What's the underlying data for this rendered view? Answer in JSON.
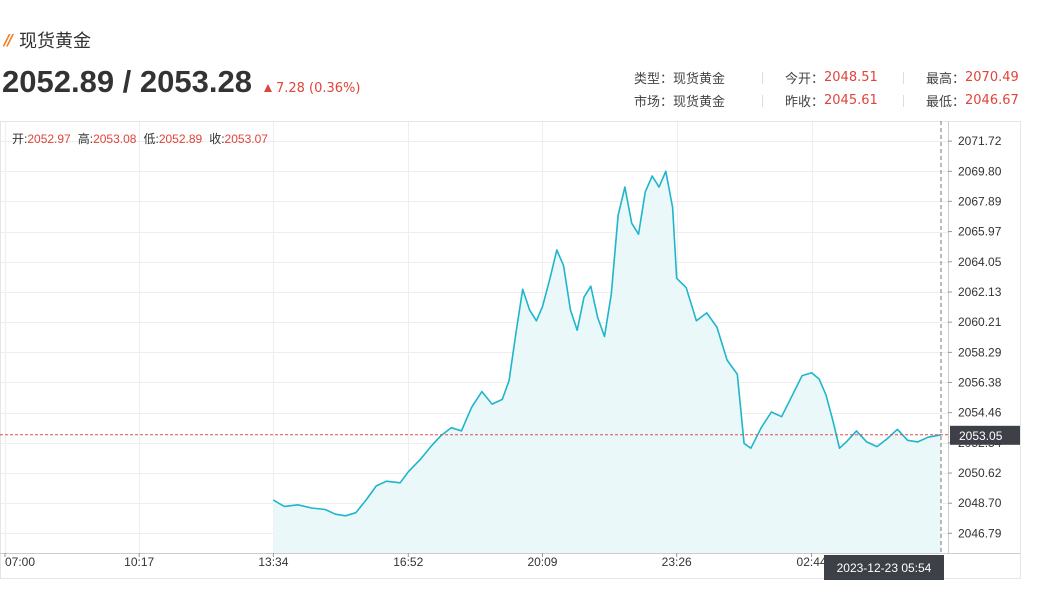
{
  "header": {
    "title": "现货黄金",
    "bid_ask": "2052.89 / 2053.28",
    "change": "7.28 (0.36%)"
  },
  "info": {
    "type_label": "类型：",
    "type_value": "现货黄金",
    "open_label": "今开：",
    "open_value": "2048.51",
    "high_label": "最高：",
    "high_value": "2070.49",
    "market_label": "市场：",
    "market_value": "现货黄金",
    "prev_close_label": "昨收：",
    "prev_close_value": "2045.61",
    "low_label": "最低：",
    "low_value": "2046.67"
  },
  "ohlc_bar": {
    "open_label": "开:",
    "open_value": "2052.97",
    "high_label": "高:",
    "high_value": "2053.08",
    "low_label": "低:",
    "low_value": "2052.89",
    "close_label": "收:",
    "close_value": "2053.07"
  },
  "colors": {
    "line": "#1fb5cc",
    "area": "#eaf8fa",
    "up": "#e0443b",
    "ref_line": "#d9534f",
    "crosshair_label_bg": "#3e4047"
  },
  "crosshair": {
    "price_label": "2053.05",
    "time_label": "2023-12-23 05:54"
  },
  "chart_data": {
    "type": "area",
    "title": "",
    "xlabel": "",
    "ylabel": "",
    "x_ticks": [
      "07:00",
      "10:17",
      "13:34",
      "16:52",
      "20:09",
      "23:26",
      "02:44"
    ],
    "y_ticks": [
      2071.72,
      2069.8,
      2067.89,
      2065.97,
      2064.05,
      2062.13,
      2060.21,
      2058.29,
      2056.38,
      2054.46,
      2052.54,
      2050.62,
      2048.7,
      2046.79
    ],
    "ylim": [
      2045.6,
      2072.3
    ],
    "reference_line": 2053.05,
    "series": [
      {
        "points": [
          [
            "13:34",
            2048.9
          ],
          [
            "13:50",
            2048.5
          ],
          [
            "14:10",
            2048.6
          ],
          [
            "14:30",
            2048.4
          ],
          [
            "14:50",
            2048.3
          ],
          [
            "15:05",
            2048.0
          ],
          [
            "15:20",
            2047.9
          ],
          [
            "15:35",
            2048.1
          ],
          [
            "15:50",
            2048.9
          ],
          [
            "16:05",
            2049.8
          ],
          [
            "16:20",
            2050.1
          ],
          [
            "16:40",
            2050.0
          ],
          [
            "16:52",
            2050.7
          ],
          [
            "17:10",
            2051.5
          ],
          [
            "17:25",
            2052.3
          ],
          [
            "17:40",
            2053.0
          ],
          [
            "17:55",
            2053.5
          ],
          [
            "18:10",
            2053.3
          ],
          [
            "18:25",
            2054.8
          ],
          [
            "18:40",
            2055.8
          ],
          [
            "18:55",
            2055.0
          ],
          [
            "19:10",
            2055.3
          ],
          [
            "19:20",
            2056.5
          ],
          [
            "19:30",
            2059.5
          ],
          [
            "19:40",
            2062.3
          ],
          [
            "19:50",
            2061.0
          ],
          [
            "20:00",
            2060.3
          ],
          [
            "20:09",
            2061.2
          ],
          [
            "20:20",
            2063.0
          ],
          [
            "20:30",
            2064.8
          ],
          [
            "20:40",
            2063.8
          ],
          [
            "20:50",
            2061.0
          ],
          [
            "21:00",
            2059.7
          ],
          [
            "21:10",
            2061.8
          ],
          [
            "21:20",
            2062.5
          ],
          [
            "21:30",
            2060.5
          ],
          [
            "21:40",
            2059.3
          ],
          [
            "21:50",
            2062.0
          ],
          [
            "22:00",
            2067.0
          ],
          [
            "22:10",
            2068.8
          ],
          [
            "22:20",
            2066.5
          ],
          [
            "22:30",
            2065.8
          ],
          [
            "22:40",
            2068.5
          ],
          [
            "22:50",
            2069.5
          ],
          [
            "23:00",
            2068.8
          ],
          [
            "23:10",
            2069.8
          ],
          [
            "23:20",
            2067.5
          ],
          [
            "23:26",
            2063.0
          ],
          [
            "23:40",
            2062.4
          ],
          [
            "23:55",
            2060.3
          ],
          [
            "00:10",
            2060.8
          ],
          [
            "00:25",
            2059.9
          ],
          [
            "00:40",
            2057.8
          ],
          [
            "00:55",
            2056.9
          ],
          [
            "01:05",
            2052.5
          ],
          [
            "01:15",
            2052.2
          ],
          [
            "01:30",
            2053.5
          ],
          [
            "01:45",
            2054.5
          ],
          [
            "02:00",
            2054.2
          ],
          [
            "02:15",
            2055.5
          ],
          [
            "02:30",
            2056.8
          ],
          [
            "02:44",
            2057.0
          ],
          [
            "02:55",
            2056.6
          ],
          [
            "03:05",
            2055.6
          ],
          [
            "03:15",
            2054.0
          ],
          [
            "03:25",
            2052.2
          ],
          [
            "03:35",
            2052.6
          ],
          [
            "03:50",
            2053.3
          ],
          [
            "04:05",
            2052.6
          ],
          [
            "04:20",
            2052.3
          ],
          [
            "04:35",
            2052.8
          ],
          [
            "04:50",
            2053.4
          ],
          [
            "05:05",
            2052.7
          ],
          [
            "05:20",
            2052.6
          ],
          [
            "05:35",
            2052.9
          ],
          [
            "05:54",
            2053.05
          ]
        ]
      }
    ],
    "grid": true
  }
}
